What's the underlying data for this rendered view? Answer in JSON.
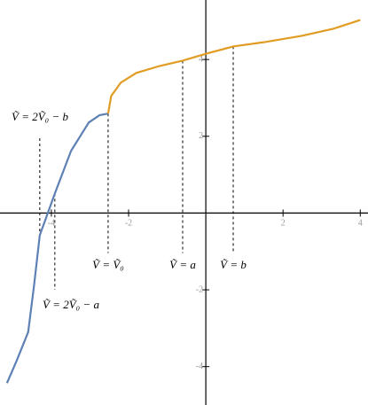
{
  "chart_data": {
    "type": "line",
    "xlim": [
      -5.33,
      4.2
    ],
    "ylim": [
      -5.0,
      5.55
    ],
    "xticks": [
      -4,
      -2,
      2,
      4
    ],
    "yticks": [
      -4,
      -2,
      2,
      4
    ],
    "series": [
      {
        "color": "#5e81b5",
        "x": [
          -5.15,
          -4.9,
          -4.6,
          -4.45,
          -4.3,
          -3.91,
          -3.49,
          -3.03,
          -2.75,
          -2.53
        ],
        "values": [
          -4.43,
          -3.85,
          -3.1,
          -1.9,
          -0.58,
          0.51,
          1.62,
          2.36,
          2.55,
          2.59
        ]
      },
      {
        "color": "#e19c24",
        "x": [
          -2.53,
          -2.45,
          -2.2,
          -1.8,
          -1.2,
          -0.6,
          0,
          0.71,
          1.5,
          2.5,
          3.3,
          4.0
        ],
        "values": [
          2.59,
          3.05,
          3.4,
          3.65,
          3.83,
          3.97,
          4.15,
          4.34,
          4.45,
          4.62,
          4.8,
          5.03
        ]
      }
    ],
    "annotations": [
      {
        "text": "Ṽ = 2Ṽ₀ − b",
        "x": -4.3,
        "y1": 1.95,
        "y2": -0.58
      },
      {
        "text": "Ṽ = 2Ṽ₀ − a",
        "x": -3.91,
        "y1": 0.51,
        "y2": -2.0
      },
      {
        "text": "Ṽ = Ṽ₀",
        "x": -2.53,
        "y1": 2.59,
        "y2": -1.04
      },
      {
        "text": "Ṽ = a",
        "x": -0.6,
        "y1": 3.97,
        "y2": -1.04
      },
      {
        "text": "Ṽ = b",
        "x": 0.71,
        "y1": 4.34,
        "y2": -1.04
      }
    ]
  }
}
